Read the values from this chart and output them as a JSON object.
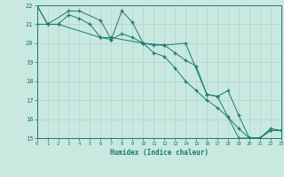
{
  "line1_x": [
    0,
    1,
    3,
    4,
    6,
    7,
    8,
    9,
    10,
    12,
    14,
    16,
    17,
    18,
    19,
    20,
    21,
    22,
    23
  ],
  "line1_y": [
    22.0,
    21.0,
    21.7,
    21.7,
    21.2,
    20.2,
    21.7,
    21.1,
    20.0,
    19.9,
    20.0,
    17.3,
    17.2,
    17.5,
    16.2,
    15.0,
    15.0,
    15.5,
    15.4
  ],
  "line2_x": [
    0,
    1,
    2,
    6,
    7,
    10,
    11,
    12,
    13,
    14,
    15,
    16,
    17,
    18,
    19,
    20,
    21,
    22,
    23
  ],
  "line2_y": [
    21.0,
    21.0,
    21.0,
    20.3,
    20.3,
    20.0,
    19.9,
    19.9,
    19.5,
    19.1,
    18.8,
    17.3,
    17.2,
    16.1,
    15.0,
    15.0,
    15.0,
    15.4,
    15.4
  ],
  "line3_x": [
    0,
    1,
    2,
    3,
    4,
    5,
    6,
    7,
    8,
    9,
    10,
    11,
    12,
    13,
    14,
    15,
    16,
    17,
    18,
    19,
    20,
    21,
    22,
    23
  ],
  "line3_y": [
    22.0,
    21.0,
    21.0,
    21.5,
    21.3,
    21.0,
    20.3,
    20.2,
    20.5,
    20.3,
    20.0,
    19.5,
    19.3,
    18.7,
    18.0,
    17.5,
    17.0,
    16.6,
    16.1,
    15.5,
    15.0,
    15.0,
    15.4,
    15.4
  ],
  "line_color": "#1a7a6e",
  "bg_color": "#c8e8e0",
  "grid_color": "#b0d4cc",
  "xlabel": "Humidex (Indice chaleur)",
  "ylim": [
    15,
    22
  ],
  "xlim": [
    0,
    23
  ],
  "yticks": [
    15,
    16,
    17,
    18,
    19,
    20,
    21,
    22
  ],
  "xticks": [
    0,
    1,
    2,
    3,
    4,
    5,
    6,
    7,
    8,
    9,
    10,
    11,
    12,
    13,
    14,
    15,
    16,
    17,
    18,
    19,
    20,
    21,
    22,
    23
  ]
}
